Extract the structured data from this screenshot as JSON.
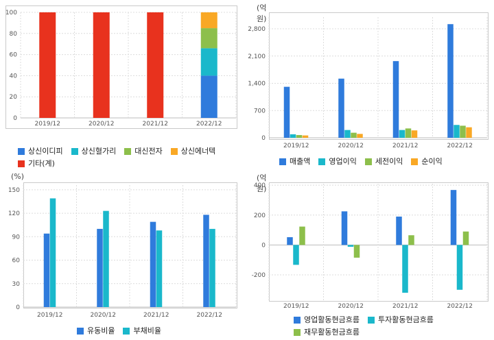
{
  "colors": {
    "blue": "#2f7bdc",
    "teal": "#1ab8cb",
    "green": "#8dbf4b",
    "orange": "#f9a825",
    "red": "#e8321e",
    "grid": "#dcdcdc",
    "axis": "#999999"
  },
  "chart_data": [
    {
      "id": "composition",
      "type": "bar",
      "stacked": true,
      "categories": [
        "2019/12",
        "2020/12",
        "2021/12",
        "2022/12"
      ],
      "yticks": [
        0,
        20,
        40,
        60,
        80,
        100
      ],
      "ylim": [
        0,
        100
      ],
      "series": [
        {
          "name": "상신이디피",
          "color": "#2f7bdc",
          "values": [
            0,
            0,
            0,
            40
          ]
        },
        {
          "name": "상신혈가리",
          "color": "#1ab8cb",
          "values": [
            0,
            0,
            0,
            26
          ]
        },
        {
          "name": "대신전자",
          "color": "#8dbf4b",
          "values": [
            0,
            0,
            0,
            19
          ]
        },
        {
          "name": "상신에너텍",
          "color": "#f9a825",
          "values": [
            0,
            0,
            0,
            15
          ]
        },
        {
          "name": "기타(계)",
          "color": "#e8321e",
          "values": [
            100,
            100,
            100,
            0
          ]
        }
      ]
    },
    {
      "id": "profit",
      "type": "bar",
      "unit": "(억원)",
      "categories": [
        "2019/12",
        "2020/12",
        "2021/12",
        "2022/12"
      ],
      "yticks": [
        0,
        700,
        1400,
        2100,
        2800
      ],
      "ytick_labels": [
        "0",
        "700",
        "1,400",
        "2,100",
        "2,800"
      ],
      "ylim": [
        0,
        3100
      ],
      "series": [
        {
          "name": "매출액",
          "color": "#2f7bdc",
          "values": [
            1310,
            1520,
            1970,
            2920
          ]
        },
        {
          "name": "영업이익",
          "color": "#1ab8cb",
          "values": [
            90,
            200,
            200,
            330
          ]
        },
        {
          "name": "세전이익",
          "color": "#8dbf4b",
          "values": [
            70,
            130,
            240,
            310
          ]
        },
        {
          "name": "순이익",
          "color": "#f9a825",
          "values": [
            60,
            100,
            190,
            270
          ]
        }
      ]
    },
    {
      "id": "ratio",
      "type": "bar",
      "unit": "(%)",
      "categories": [
        "2019/12",
        "2020/12",
        "2021/12",
        "2022/12"
      ],
      "yticks": [
        0,
        30,
        60,
        90,
        120,
        150
      ],
      "ylim": [
        0,
        156
      ],
      "series": [
        {
          "name": "유동비율",
          "color": "#2f7bdc",
          "values": [
            94,
            100,
            109,
            118
          ]
        },
        {
          "name": "부채비율",
          "color": "#1ab8cb",
          "values": [
            139,
            123,
            98,
            100
          ]
        }
      ]
    },
    {
      "id": "cashflow",
      "type": "bar",
      "unit": "(억원)",
      "categories": [
        "2019/12",
        "2020/12",
        "2021/12",
        "2022/12"
      ],
      "yticks": [
        -200,
        0,
        200,
        400
      ],
      "ylim": [
        -370,
        410
      ],
      "series": [
        {
          "name": "영업활동현금흐름",
          "color": "#2f7bdc",
          "values": [
            52,
            225,
            190,
            368
          ]
        },
        {
          "name": "투자활동현금흐름",
          "color": "#1ab8cb",
          "values": [
            -133,
            -12,
            -320,
            -300
          ]
        },
        {
          "name": "재무활동현금흐름",
          "color": "#8dbf4b",
          "values": [
            123,
            -85,
            65,
            90
          ]
        }
      ]
    }
  ]
}
